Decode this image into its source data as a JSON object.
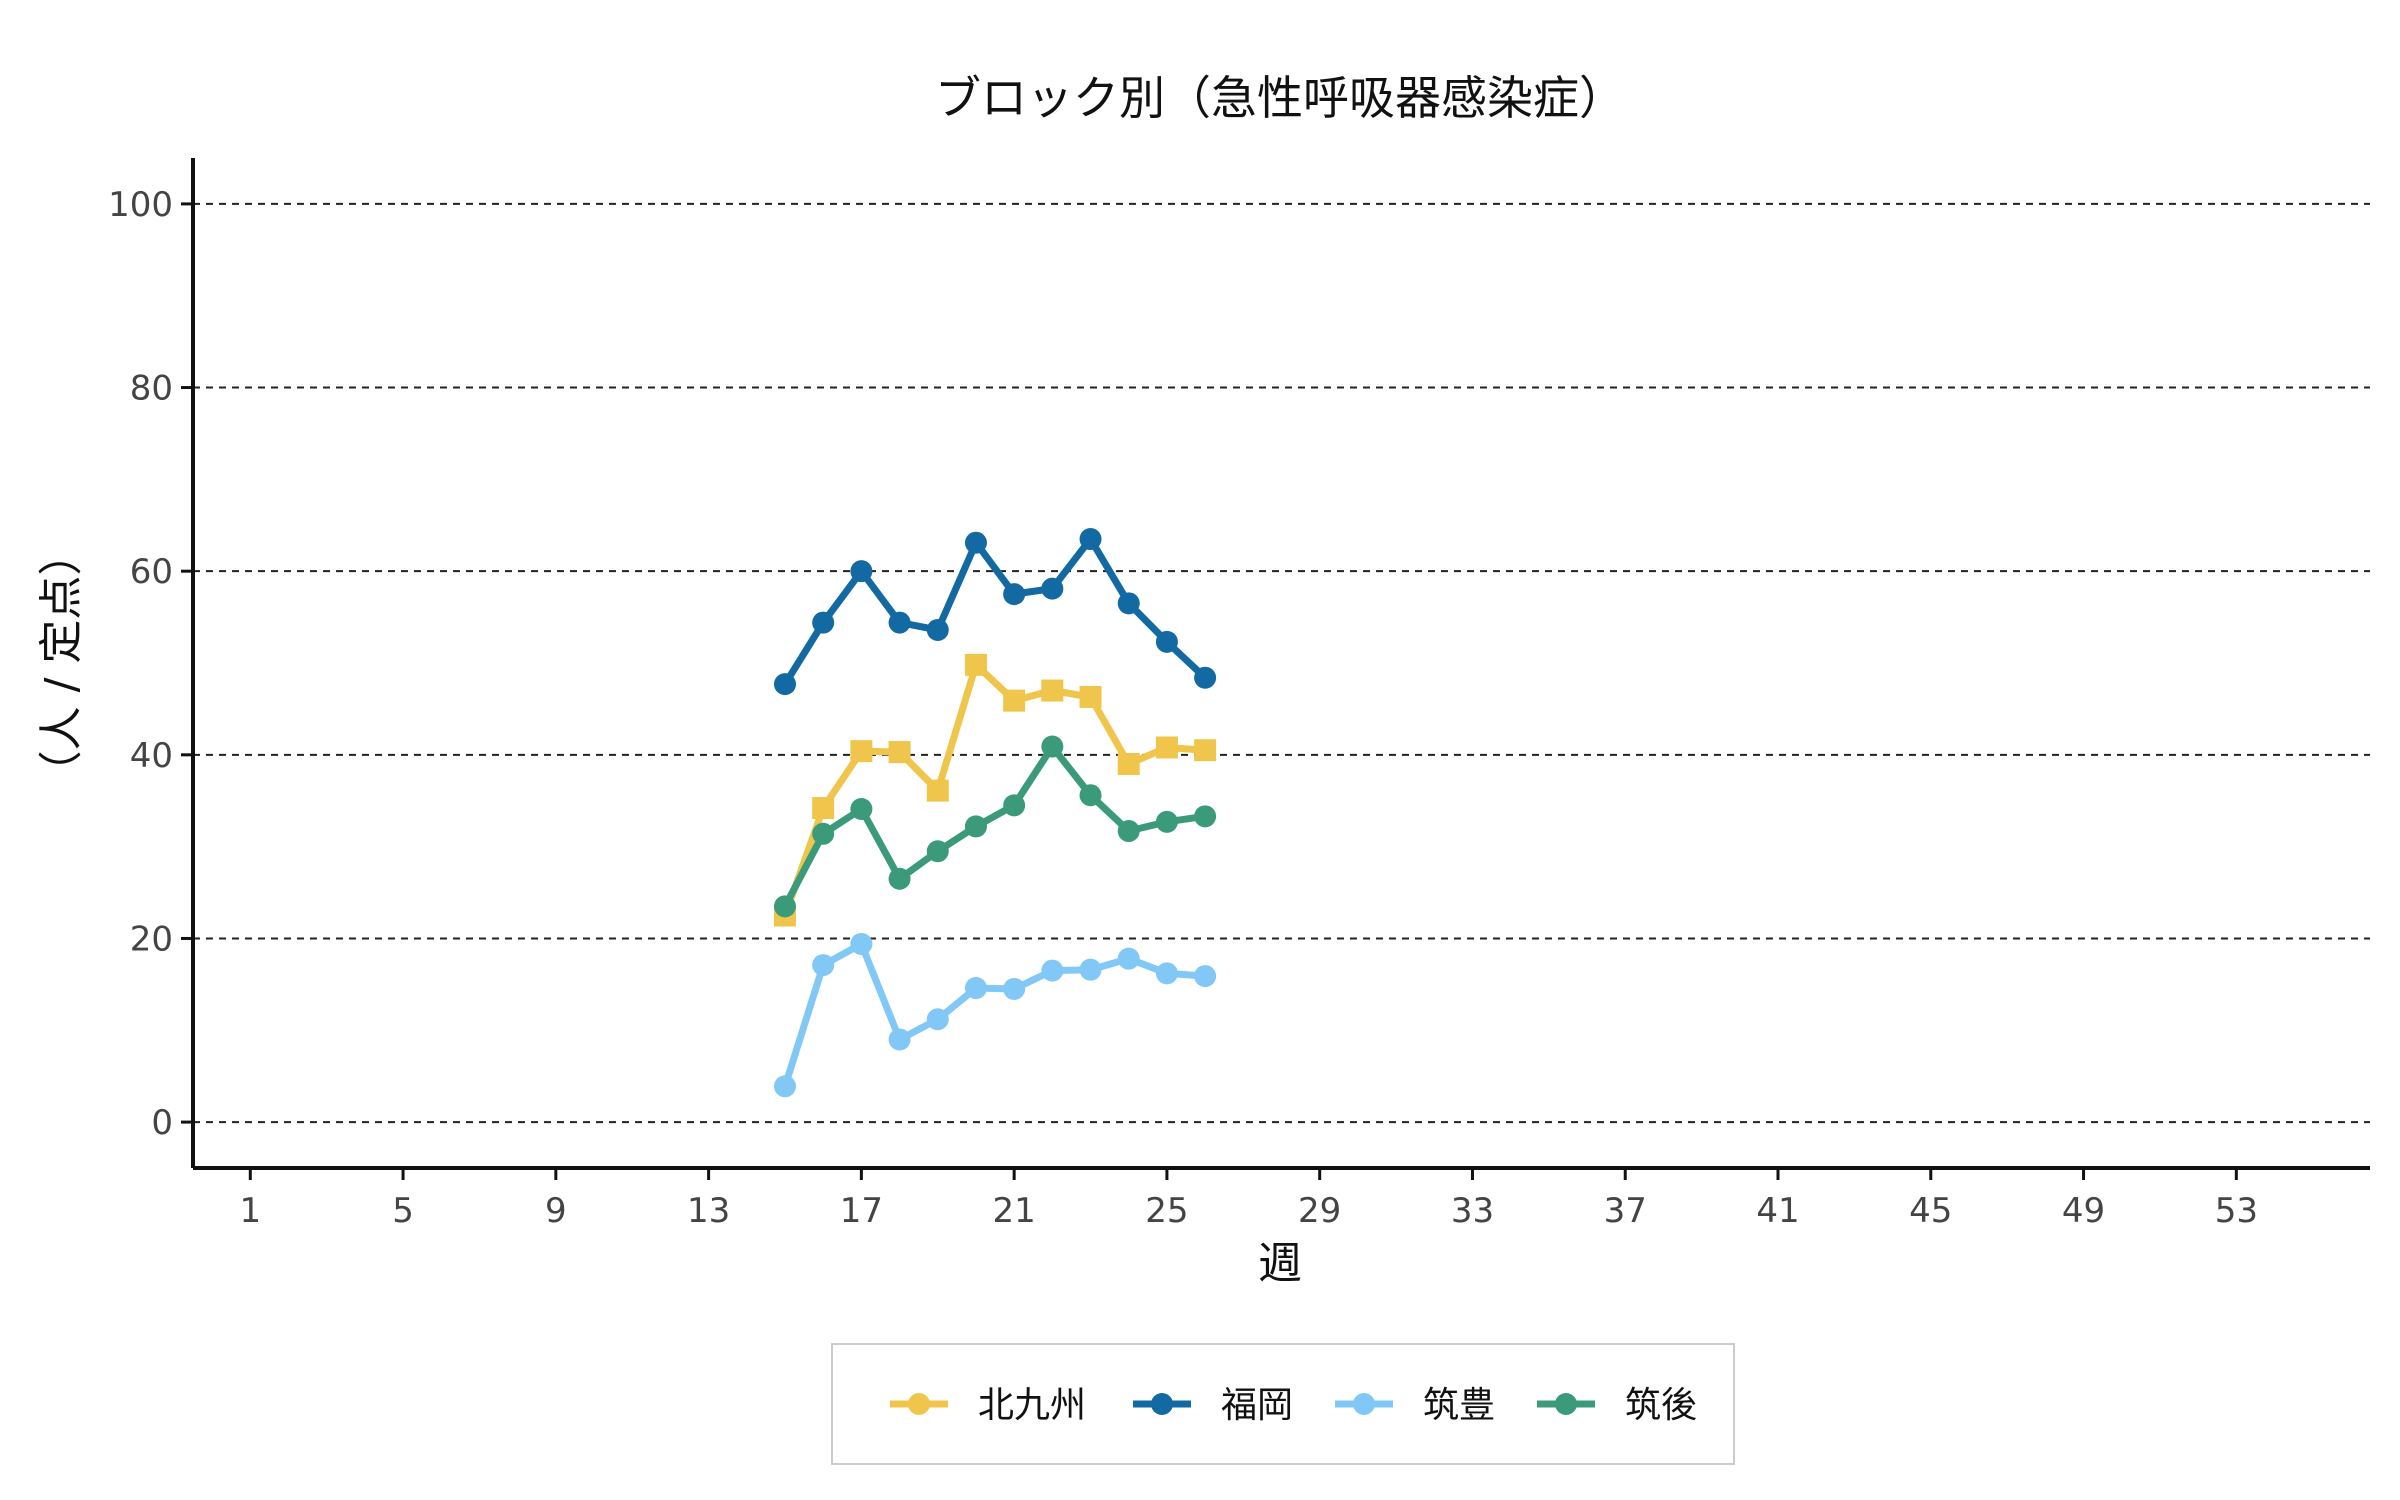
{
  "chart_data": {
    "type": "line",
    "title": "ブロック別（急性呼吸器感染症）",
    "xlabel": "週",
    "ylabel": "（人 / 定点）",
    "xlim": [
      -0.5,
      56.5
    ],
    "ylim": [
      -5,
      105
    ],
    "x_ticks": [
      1,
      5,
      9,
      13,
      17,
      21,
      25,
      29,
      33,
      37,
      41,
      45,
      49,
      53
    ],
    "y_ticks": [
      0,
      20,
      40,
      60,
      80,
      100
    ],
    "grid": "horizontal dashed",
    "legend_position": "bottom",
    "series": [
      {
        "name": "北九州",
        "color": "#F0C54C",
        "marker": "square",
        "x": [
          15,
          16,
          17,
          18,
          19,
          20,
          21,
          22,
          23,
          24,
          25,
          26
        ],
        "values": [
          22.5,
          34.2,
          40.4,
          40.3,
          36.1,
          49.8,
          45.9,
          47.0,
          46.3,
          39.0,
          40.8,
          40.5
        ]
      },
      {
        "name": "福岡",
        "color": "#136AA2",
        "marker": "circle",
        "x": [
          15,
          16,
          17,
          18,
          19,
          20,
          21,
          22,
          23,
          24,
          25,
          26
        ],
        "values": [
          47.7,
          54.4,
          60.0,
          54.4,
          53.6,
          63.1,
          57.5,
          58.1,
          63.5,
          56.5,
          52.3,
          48.4
        ]
      },
      {
        "name": "筑豊",
        "color": "#82C8F7",
        "marker": "circle",
        "x": [
          15,
          16,
          17,
          18,
          19,
          20,
          21,
          22,
          23,
          24,
          25,
          26
        ],
        "values": [
          3.9,
          17.1,
          19.4,
          9.0,
          11.2,
          14.6,
          14.5,
          16.5,
          16.6,
          17.8,
          16.2,
          15.9
        ]
      },
      {
        "name": "筑後",
        "color": "#3A9A7A",
        "marker": "circle",
        "x": [
          15,
          16,
          17,
          18,
          19,
          20,
          21,
          22,
          23,
          24,
          25,
          26
        ],
        "values": [
          23.5,
          31.4,
          34.1,
          26.5,
          29.5,
          32.2,
          34.5,
          40.9,
          35.6,
          31.7,
          32.7,
          33.3
        ]
      }
    ]
  }
}
